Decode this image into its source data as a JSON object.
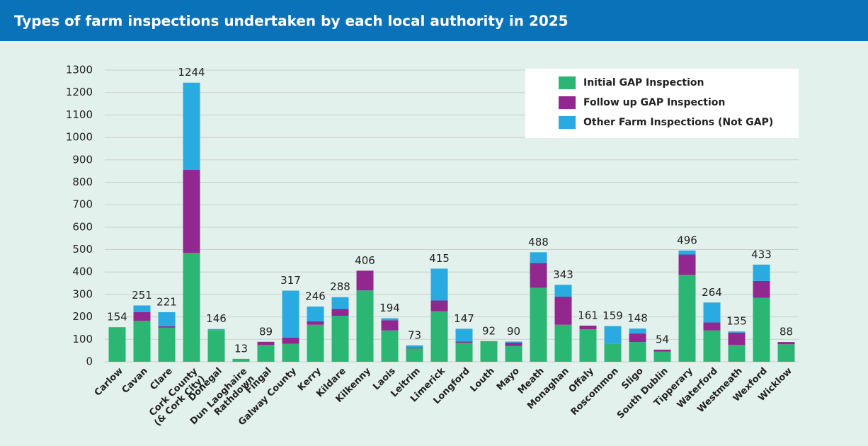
{
  "chart_data": {
    "type": "stacked_bar",
    "title": "Types of farm inspections undertaken by each local authority in 2025",
    "categories": [
      "Carlow",
      "Cavan",
      "Clare",
      "Cork County\n(& Cork City)",
      "Donegal",
      "Dun Laoghaire\nRathdown",
      "Fingal",
      "Galway County",
      "Kerry",
      "Kildare",
      "Kilkenny",
      "Laois",
      "Leitrim",
      "Limerick",
      "Longford",
      "Louth",
      "Mayo",
      "Meath",
      "Monaghan",
      "Offaly",
      "Roscommon",
      "Sligo",
      "South Dublin",
      "Tipperary",
      "Waterford",
      "Westmeath",
      "Wexford",
      "Wicklow"
    ],
    "series": [
      {
        "name": "Initial GAP Inspection",
        "color": "#2bb673",
        "values": [
          154,
          183,
          152,
          485,
          141,
          13,
          75,
          80,
          165,
          205,
          318,
          140,
          60,
          225,
          85,
          92,
          70,
          330,
          165,
          145,
          80,
          88,
          45,
          388,
          140,
          75,
          285,
          78
        ]
      },
      {
        "name": "Follow up GAP Inspection",
        "color": "#92278f",
        "values": [
          0,
          38,
          6,
          370,
          0,
          0,
          14,
          28,
          15,
          30,
          88,
          45,
          3,
          48,
          5,
          0,
          15,
          110,
          125,
          16,
          0,
          38,
          9,
          90,
          35,
          55,
          75,
          10
        ]
      },
      {
        "name": "Other Farm Inspections (Not GAP)",
        "color": "#29abe2",
        "values": [
          0,
          30,
          63,
          389,
          5,
          0,
          0,
          209,
          66,
          53,
          0,
          9,
          10,
          142,
          57,
          0,
          5,
          48,
          53,
          0,
          79,
          22,
          0,
          18,
          89,
          5,
          73,
          0
        ]
      }
    ],
    "totals": [
      154,
      251,
      221,
      1244,
      146,
      13,
      89,
      317,
      246,
      288,
      406,
      194,
      73,
      415,
      147,
      92,
      90,
      488,
      343,
      161,
      159,
      148,
      54,
      496,
      264,
      135,
      433,
      88
    ],
    "ylim": [
      0,
      1300
    ],
    "yticks": [
      0,
      100,
      200,
      300,
      400,
      500,
      600,
      700,
      800,
      900,
      1000,
      1100,
      1200,
      1300
    ],
    "grid": true,
    "legend": "upper right"
  }
}
